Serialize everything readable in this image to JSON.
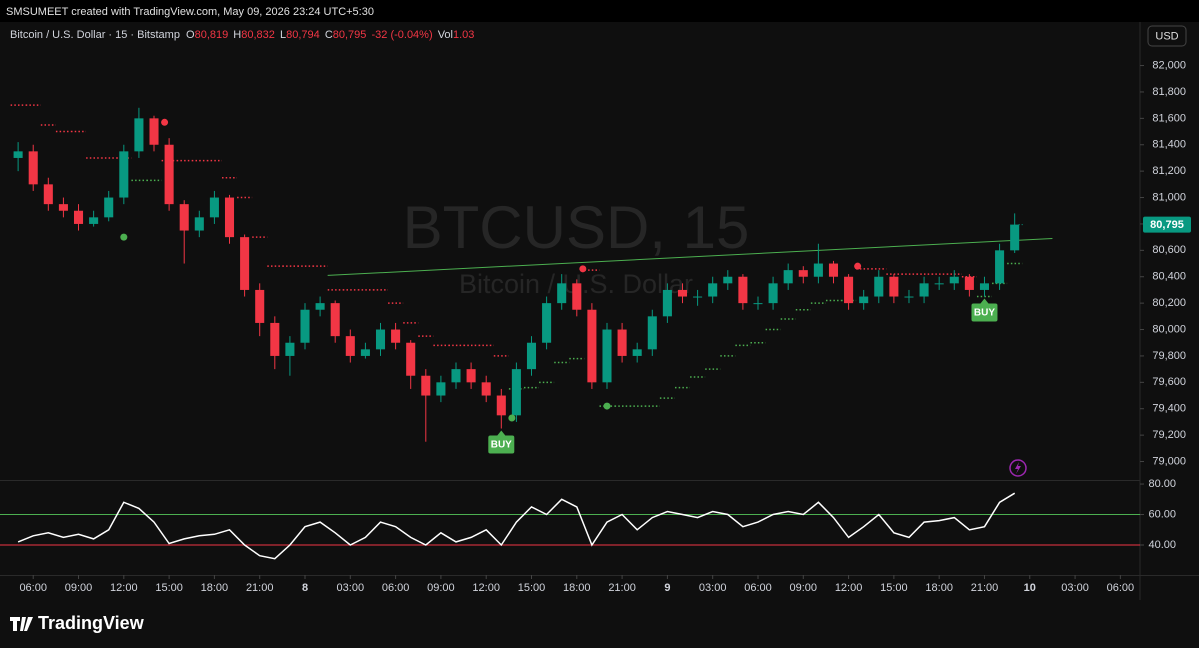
{
  "header": {
    "text": "SMSUMEET created with TradingView.com, May 09, 2026 23:24 UTC+5:30"
  },
  "legend": {
    "symbol": "Bitcoin / U.S. Dollar · 15 · Bitstamp",
    "o_label": "O",
    "open": "80,819",
    "h_label": "H",
    "high": "80,832",
    "l_label": "L",
    "low": "80,794",
    "c_label": "C",
    "close": "80,795",
    "change": "-32 (-0.04%)",
    "vol_label": "Vol",
    "volume": "1.03"
  },
  "currency_button": "USD",
  "watermark": {
    "symbol": "BTCUSD, 15",
    "name": "Bitcoin / U.S. Dollar"
  },
  "brand": "TradingView",
  "chart_data": [
    {
      "type": "candlestick",
      "x": [
        5,
        6,
        7,
        8,
        9,
        10,
        11,
        12,
        13,
        14,
        15,
        16,
        17,
        18,
        19,
        20,
        21,
        22,
        23,
        24,
        25,
        26,
        27,
        28,
        29,
        30,
        31,
        32,
        33,
        34,
        35,
        36,
        37,
        38,
        39,
        40,
        41,
        42,
        43,
        44,
        45,
        46,
        47,
        48,
        49,
        50,
        51,
        52,
        53,
        54,
        55,
        56,
        57,
        58,
        59,
        60,
        61,
        62,
        63,
        64,
        65,
        66,
        67,
        68,
        69,
        70,
        71
      ],
      "open": [
        81300,
        81350,
        81100,
        80950,
        80900,
        80800,
        80850,
        81000,
        81350,
        81600,
        81400,
        80950,
        80750,
        80850,
        81000,
        80700,
        80300,
        80050,
        79800,
        79900,
        80150,
        80200,
        79950,
        79800,
        79850,
        80000,
        79900,
        79650,
        79500,
        79600,
        79700,
        79600,
        79500,
        79350,
        79700,
        79900,
        80200,
        80350,
        80150,
        79600,
        80000,
        79800,
        79850,
        80100,
        80300,
        80250,
        80250,
        80350,
        80400,
        80200,
        80200,
        80350,
        80450,
        80400,
        80500,
        80400,
        80200,
        80250,
        80400,
        80250,
        80250,
        80350,
        80350,
        80400,
        80300,
        80350,
        80600
      ],
      "high": [
        81420,
        81400,
        81150,
        81000,
        80950,
        80900,
        81050,
        81400,
        81680,
        81620,
        81450,
        80980,
        80900,
        81050,
        81020,
        80720,
        80350,
        80100,
        79950,
        80200,
        80250,
        80220,
        80000,
        79900,
        80050,
        80050,
        79920,
        79700,
        79650,
        79750,
        79750,
        79650,
        79550,
        79750,
        79950,
        80250,
        80420,
        80380,
        80200,
        80050,
        80050,
        79900,
        80150,
        80350,
        80350,
        80300,
        80400,
        80450,
        80420,
        80250,
        80400,
        80500,
        80480,
        80650,
        80520,
        80420,
        80300,
        80450,
        80420,
        80300,
        80400,
        80400,
        80450,
        80420,
        80400,
        80650,
        80880
      ],
      "low": [
        81200,
        81050,
        80900,
        80850,
        80750,
        80780,
        80820,
        80950,
        81300,
        81350,
        80900,
        80500,
        80700,
        80800,
        80650,
        80250,
        79950,
        79700,
        79650,
        79850,
        80100,
        79900,
        79750,
        79780,
        79800,
        79850,
        79550,
        79150,
        79450,
        79550,
        79550,
        79450,
        79250,
        79300,
        79650,
        79850,
        80150,
        80100,
        79550,
        79550,
        79750,
        79750,
        79800,
        80050,
        80200,
        80180,
        80200,
        80300,
        80150,
        80150,
        80150,
        80300,
        80350,
        80350,
        80350,
        80150,
        80150,
        80200,
        80200,
        80200,
        80200,
        80300,
        80300,
        80250,
        80250,
        80300,
        80580
      ],
      "close": [
        81350,
        81100,
        80950,
        80900,
        80800,
        80850,
        81000,
        81350,
        81600,
        81400,
        80950,
        80750,
        80850,
        81000,
        80700,
        80300,
        80050,
        79800,
        79900,
        80150,
        80200,
        79950,
        79800,
        79850,
        80000,
        79900,
        79650,
        79500,
        79600,
        79700,
        79600,
        79500,
        79350,
        79700,
        79900,
        80200,
        80350,
        80150,
        79600,
        80000,
        79800,
        79850,
        80100,
        80300,
        80250,
        80250,
        80350,
        80400,
        80200,
        80200,
        80350,
        80450,
        80400,
        80500,
        80400,
        80200,
        80250,
        80400,
        80250,
        80250,
        80350,
        80350,
        80400,
        80300,
        80350,
        80600,
        80795
      ],
      "up_color": "#089981",
      "down_color": "#f23645",
      "last_price_label": "80,795",
      "xlim": [
        3.8,
        79.3
      ],
      "ylim": [
        78860,
        82330
      ],
      "yticks": [
        {
          "value": 79000,
          "label": "79,000"
        },
        {
          "value": 79200,
          "label": "79,200"
        },
        {
          "value": 79400,
          "label": "79,400"
        },
        {
          "value": 79600,
          "label": "79,600"
        },
        {
          "value": 79800,
          "label": "79,800"
        },
        {
          "value": 80000,
          "label": "80,000"
        },
        {
          "value": 80200,
          "label": "80,200"
        },
        {
          "value": 80400,
          "label": "80,400"
        },
        {
          "value": 80600,
          "label": "80,600"
        },
        {
          "value": 80800,
          "label": "80,800"
        },
        {
          "value": 81000,
          "label": "81,000"
        },
        {
          "value": 81200,
          "label": "81,200"
        },
        {
          "value": 81400,
          "label": "81,400"
        },
        {
          "value": 81600,
          "label": "81,600"
        },
        {
          "value": 81800,
          "label": "81,800"
        },
        {
          "value": 82000,
          "label": "82,000"
        }
      ],
      "supertrend": {
        "resistance": {
          "color": "#f23645",
          "values": [
            81700,
            81700,
            81550,
            81500,
            81500,
            81300,
            81300,
            81300,
            null,
            null,
            81280,
            81280,
            81280,
            81280,
            81150,
            81000,
            80700,
            80480,
            80480,
            80480,
            80480,
            80300,
            80300,
            80300,
            80300,
            80200,
            80050,
            79950,
            79880,
            79880,
            79880,
            79880,
            79800,
            null,
            null,
            null,
            null,
            null,
            80450,
            null,
            null,
            null,
            null,
            null,
            null,
            null,
            null,
            null,
            null,
            null,
            null,
            null,
            null,
            null,
            null,
            null,
            80460,
            80460,
            80420,
            80420,
            80420,
            80420,
            80420,
            80400,
            null,
            null,
            null
          ]
        },
        "support": {
          "color": "#4caf50",
          "values": [
            null,
            null,
            null,
            null,
            null,
            null,
            null,
            null,
            81130,
            81130,
            null,
            null,
            null,
            null,
            null,
            null,
            null,
            null,
            null,
            null,
            null,
            null,
            null,
            null,
            null,
            null,
            null,
            null,
            null,
            null,
            null,
            null,
            null,
            79550,
            79560,
            79600,
            79750,
            79780,
            null,
            79420,
            79420,
            79420,
            79420,
            79480,
            79560,
            79640,
            79700,
            79800,
            79880,
            79900,
            80000,
            80080,
            80150,
            80200,
            80220,
            80220,
            null,
            null,
            null,
            null,
            null,
            null,
            null,
            null,
            80250,
            80350,
            80500
          ]
        }
      },
      "sell_markers": {
        "color": "#f23645",
        "x": [
          14.7,
          42.4,
          60.6
        ],
        "values": [
          81570,
          80460,
          80480
        ]
      },
      "buy_markers": {
        "color": "#4caf50",
        "x": [
          12,
          37.7,
          44
        ],
        "values": [
          80700,
          79330,
          79420
        ]
      },
      "buy_labels": {
        "color": "#4caf50",
        "text": [
          "BUY",
          "BUY"
        ],
        "x": [
          37,
          69
        ]
      },
      "trendline": {
        "color": "#4caf50",
        "x": [
          25.5,
          73.5
        ],
        "values": [
          80410,
          80690
        ]
      }
    },
    {
      "type": "line",
      "x": [
        5,
        6,
        7,
        8,
        9,
        10,
        11,
        12,
        13,
        14,
        15,
        16,
        17,
        18,
        19,
        20,
        21,
        22,
        23,
        24,
        25,
        26,
        27,
        28,
        29,
        30,
        31,
        32,
        33,
        34,
        35,
        36,
        37,
        38,
        39,
        40,
        41,
        42,
        43,
        44,
        45,
        46,
        47,
        48,
        49,
        50,
        51,
        52,
        53,
        54,
        55,
        56,
        57,
        58,
        59,
        60,
        61,
        62,
        63,
        64,
        65,
        66,
        67,
        68,
        69,
        70,
        71
      ],
      "values": [
        42,
        46,
        48,
        45,
        47,
        44,
        50,
        68,
        64,
        55,
        41,
        44,
        46,
        47,
        50,
        40,
        33,
        31,
        40,
        52,
        55,
        48,
        40,
        45,
        55,
        52,
        45,
        40,
        48,
        42,
        45,
        50,
        40,
        55,
        65,
        60,
        70,
        65,
        40,
        55,
        60,
        50,
        58,
        62,
        60,
        58,
        62,
        60,
        52,
        55,
        60,
        62,
        60,
        68,
        58,
        45,
        52,
        60,
        48,
        45,
        55,
        56,
        58,
        50,
        52,
        68,
        74
      ],
      "color": "#ffffff",
      "levels": [
        {
          "value": 60,
          "color": "#4caf50"
        },
        {
          "value": 40,
          "color": "#f23645"
        }
      ],
      "xlim": [
        3.8,
        79.3
      ],
      "ylim": [
        20.3,
        82
      ],
      "yticks": [
        {
          "value": 40,
          "label": "40.00"
        },
        {
          "value": 60,
          "label": "60.00"
        },
        {
          "value": 80,
          "label": "80.00"
        }
      ],
      "xticks": [
        {
          "value": 6,
          "label": "06:00"
        },
        {
          "value": 9,
          "label": "09:00"
        },
        {
          "value": 12,
          "label": "12:00"
        },
        {
          "value": 15,
          "label": "15:00"
        },
        {
          "value": 18,
          "label": "18:00"
        },
        {
          "value": 21,
          "label": "21:00"
        },
        {
          "value": 24,
          "label": "8"
        },
        {
          "value": 27,
          "label": "03:00"
        },
        {
          "value": 30,
          "label": "06:00"
        },
        {
          "value": 33,
          "label": "09:00"
        },
        {
          "value": 36,
          "label": "12:00"
        },
        {
          "value": 39,
          "label": "15:00"
        },
        {
          "value": 42,
          "label": "18:00"
        },
        {
          "value": 45,
          "label": "21:00"
        },
        {
          "value": 48,
          "label": "9"
        },
        {
          "value": 51,
          "label": "03:00"
        },
        {
          "value": 54,
          "label": "06:00"
        },
        {
          "value": 57,
          "label": "09:00"
        },
        {
          "value": 60,
          "label": "12:00"
        },
        {
          "value": 63,
          "label": "15:00"
        },
        {
          "value": 66,
          "label": "18:00"
        },
        {
          "value": 69,
          "label": "21:00"
        },
        {
          "value": 72,
          "label": "10"
        },
        {
          "value": 75,
          "label": "03:00"
        },
        {
          "value": 78,
          "label": "06:00"
        }
      ]
    }
  ]
}
